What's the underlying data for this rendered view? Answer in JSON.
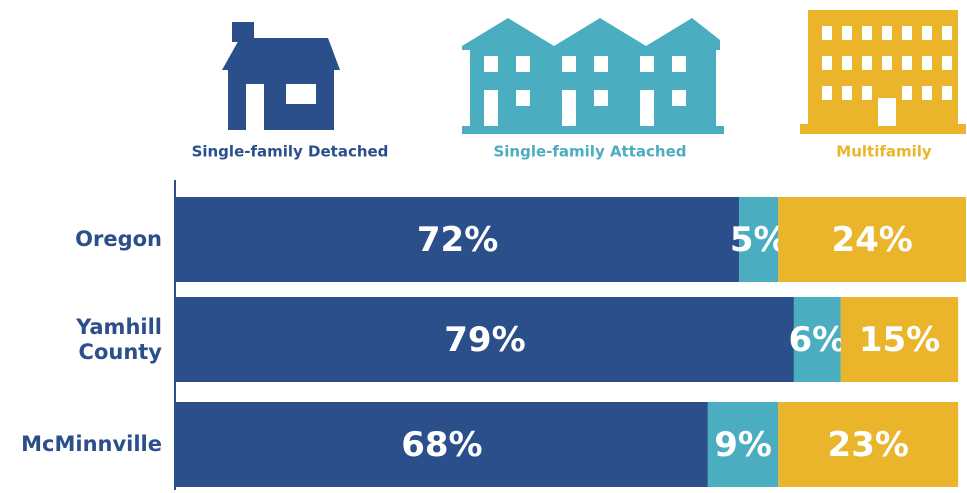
{
  "chart_data": {
    "type": "bar",
    "orientation": "horizontal",
    "stacked": true,
    "categories": [
      "Oregon",
      "Yamhill County",
      "McMinnville"
    ],
    "series": [
      {
        "name": "Single-family Detached",
        "color": "#2b4f8a",
        "values": [
          72,
          79,
          68
        ],
        "value_labels": [
          "72%",
          "79%",
          "68%"
        ]
      },
      {
        "name": "Single-family Attached",
        "color": "#4aaec0",
        "values": [
          5,
          6,
          9
        ],
        "value_labels": [
          "5%",
          "6%",
          "9%"
        ]
      },
      {
        "name": "Multifamily",
        "color": "#eab52a",
        "values": [
          24,
          15,
          23
        ],
        "value_labels": [
          "24%",
          "15%",
          "23%"
        ]
      }
    ],
    "xlim": [
      0,
      101
    ]
  }
}
